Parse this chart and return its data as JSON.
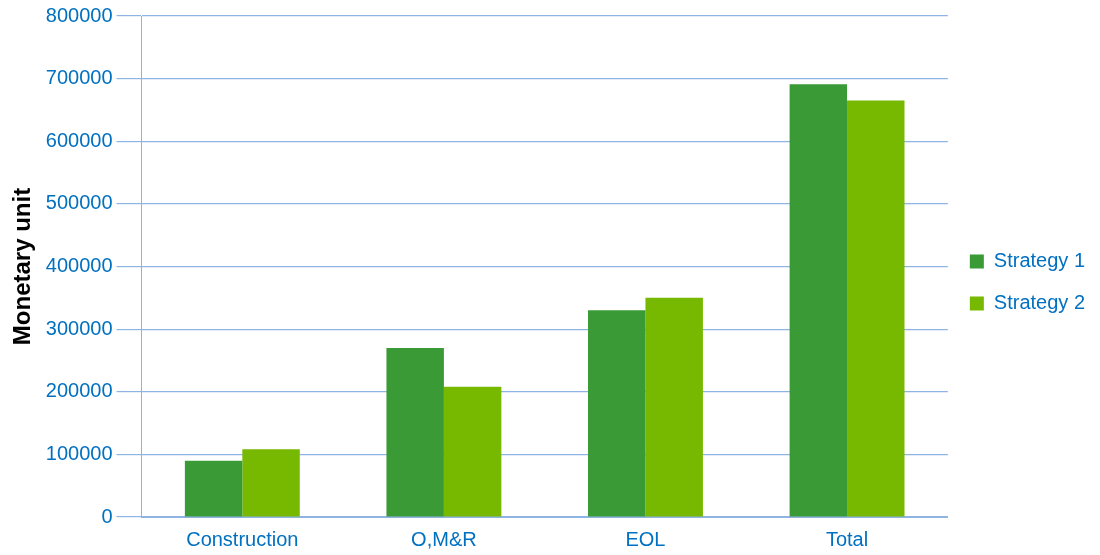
{
  "chart_data": {
    "type": "bar",
    "ylabel": "Monetary unit",
    "categories": [
      "Construction",
      "O,M&R",
      "EOL",
      "Total"
    ],
    "series": [
      {
        "name": "Strategy 1",
        "color": "#3a9a36",
        "values": [
          90000,
          270000,
          330000,
          691000
        ]
      },
      {
        "name": "Strategy 2",
        "color": "#76b900",
        "values": [
          108000,
          208000,
          350000,
          665000
        ]
      }
    ],
    "ylim": [
      0,
      800000
    ],
    "yticks": [
      0,
      100000,
      200000,
      300000,
      400000,
      500000,
      600000,
      700000,
      800000
    ],
    "grid": "y",
    "legend": "right"
  }
}
